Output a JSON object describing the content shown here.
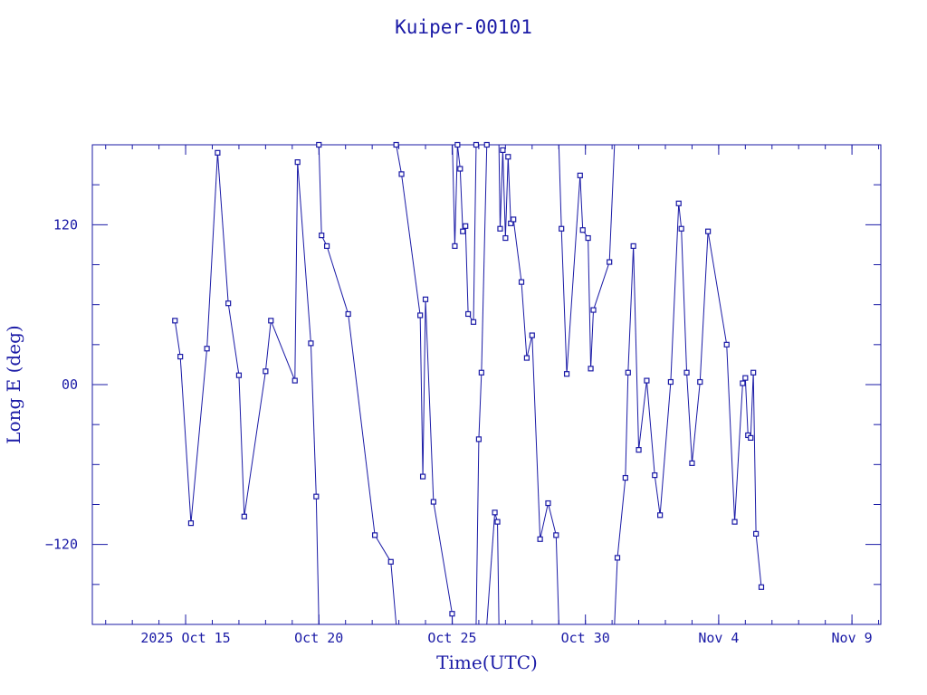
{
  "chart_data": {
    "type": "line",
    "title": "Kuiper-00101",
    "xlabel": "Time(UTC)",
    "ylabel": "Long E (deg)",
    "x_unit": "days (UTC), October–November 2025",
    "xlim": [
      "2025-10-11T12:00",
      "2025-11-10T02:00"
    ],
    "ylim": [
      -180,
      180
    ],
    "x_ticks": [
      {
        "value": "2025-10-15",
        "label": "2025 Oct 15"
      },
      {
        "value": "2025-10-20",
        "label": "Oct 20"
      },
      {
        "value": "2025-10-25",
        "label": "Oct 25"
      },
      {
        "value": "2025-10-30",
        "label": "Oct 30"
      },
      {
        "value": "2025-11-04",
        "label": "Nov  4"
      },
      {
        "value": "2025-11-09",
        "label": "Nov  9"
      }
    ],
    "y_ticks": [
      {
        "value": 120,
        "label": "120"
      },
      {
        "value": 0,
        "label": "00"
      },
      {
        "value": -120,
        "label": "−120"
      }
    ],
    "grid": false,
    "legend": "none",
    "series": [
      {
        "marker": "square",
        "x": [
          14.6,
          14.8,
          15.2,
          15.8,
          16.2,
          16.6,
          17.0,
          17.2,
          18.0,
          18.2,
          19.1,
          19.2,
          19.7,
          19.9,
          20.0,
          20.1,
          20.3,
          21.1,
          22.1,
          22.7,
          22.9,
          23.1,
          23.8,
          23.9,
          24.0,
          24.3,
          25.0,
          25.1,
          25.2,
          25.3,
          25.4,
          25.5,
          25.6,
          25.8,
          25.9,
          26.0,
          26.1,
          26.3,
          26.6,
          26.7,
          26.8,
          26.9,
          27.0,
          27.1,
          27.2,
          27.3,
          27.6,
          27.8,
          28.0,
          28.3,
          28.6,
          28.9,
          29.1,
          29.3,
          29.8,
          29.9,
          30.1,
          30.2,
          30.3,
          30.9,
          31.2,
          31.5,
          31.6,
          31.8,
          32.0,
          32.3,
          32.6,
          32.8,
          33.2,
          33.5,
          33.6,
          33.8,
          34.0,
          34.3,
          34.6,
          35.3,
          35.6,
          35.9,
          36.0,
          36.1,
          36.2,
          36.3,
          36.4,
          36.6
        ],
        "y": [
          48,
          21,
          -104,
          27,
          174,
          61,
          7,
          -99,
          10,
          48,
          3,
          167,
          31,
          -84,
          180,
          112,
          104,
          53,
          -113,
          -133,
          180,
          158,
          52,
          -69,
          64,
          -88,
          -172,
          104,
          180,
          162,
          115,
          119,
          53,
          47,
          180,
          -41,
          9,
          180,
          -96,
          -103,
          117,
          176,
          110,
          171,
          121,
          124,
          77,
          20,
          37,
          -116,
          -89,
          -113,
          117,
          8,
          157,
          116,
          110,
          12,
          56,
          92,
          -130,
          -70,
          9,
          104,
          -49,
          3,
          -68,
          -98,
          2,
          136,
          117,
          9,
          -59,
          2,
          115,
          30,
          -103,
          1,
          5,
          -38,
          -40,
          9,
          -112,
          -152
        ],
        "connected": true
      }
    ]
  }
}
